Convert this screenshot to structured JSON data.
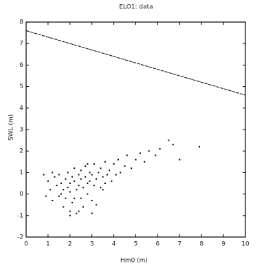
{
  "chart_data": {
    "type": "scatter",
    "title": "ELO1: data",
    "xlabel": "Hm0 (m)",
    "ylabel": "SWL (m)",
    "xlim": [
      0,
      10
    ],
    "ylim": [
      -2,
      8
    ],
    "xticks": [
      0,
      1,
      2,
      3,
      4,
      5,
      6,
      7,
      8,
      9,
      10
    ],
    "yticks": [
      -2,
      -1,
      0,
      1,
      2,
      3,
      4,
      5,
      6,
      7,
      8
    ],
    "series": [
      {
        "type": "line",
        "color": "#000000",
        "x": [
          0,
          10
        ],
        "values": [
          7.6,
          4.6
        ]
      },
      {
        "type": "scatter",
        "color": "#000000",
        "x": [
          1.0,
          1.1,
          1.2,
          1.3,
          1.4,
          1.5,
          1.5,
          1.6,
          1.7,
          1.7,
          1.8,
          1.8,
          1.9,
          1.9,
          2.0,
          2.0,
          2.0,
          2.1,
          2.1,
          2.2,
          2.2,
          2.3,
          2.3,
          2.4,
          2.4,
          2.5,
          2.5,
          2.5,
          2.6,
          2.6,
          2.7,
          2.7,
          2.8,
          2.8,
          2.9,
          2.9,
          3.0,
          3.0,
          3.1,
          3.1,
          3.2,
          3.2,
          3.3,
          3.4,
          3.4,
          3.5,
          3.6,
          3.6,
          3.8,
          3.9,
          4.0,
          4.1,
          4.2,
          4.3,
          4.5,
          4.6,
          4.8,
          5.0,
          5.2,
          5.4,
          5.6,
          5.9,
          6.1,
          6.5,
          6.7,
          7.0,
          7.9,
          0.8,
          0.9,
          1.2,
          2.0,
          2.4,
          3.0,
          2.2,
          1.6,
          3.5,
          2.8,
          3.7
        ],
        "values": [
          0.6,
          0.2,
          -0.3,
          0.8,
          0.4,
          -0.1,
          0.9,
          0.5,
          -0.6,
          0.2,
          0.7,
          -0.2,
          1.0,
          0.3,
          -0.8,
          0.5,
          0.1,
          0.8,
          -0.4,
          0.6,
          1.2,
          0.2,
          -0.9,
          0.9,
          0.4,
          -0.2,
          1.1,
          0.7,
          0.3,
          -0.6,
          0.8,
          1.3,
          0.5,
          0.0,
          1.0,
          0.6,
          -0.3,
          0.9,
          0.4,
          1.4,
          0.7,
          -0.5,
          1.0,
          0.3,
          1.2,
          0.8,
          1.5,
          0.5,
          1.1,
          0.6,
          1.4,
          0.9,
          1.6,
          1.0,
          1.3,
          1.8,
          1.2,
          1.6,
          1.9,
          1.5,
          2.0,
          1.8,
          2.1,
          2.5,
          2.3,
          1.6,
          2.2,
          0.9,
          -0.1,
          1.0,
          -1.0,
          -0.8,
          -0.9,
          -0.2,
          0.0,
          0.2,
          1.4,
          0.9
        ]
      }
    ]
  }
}
